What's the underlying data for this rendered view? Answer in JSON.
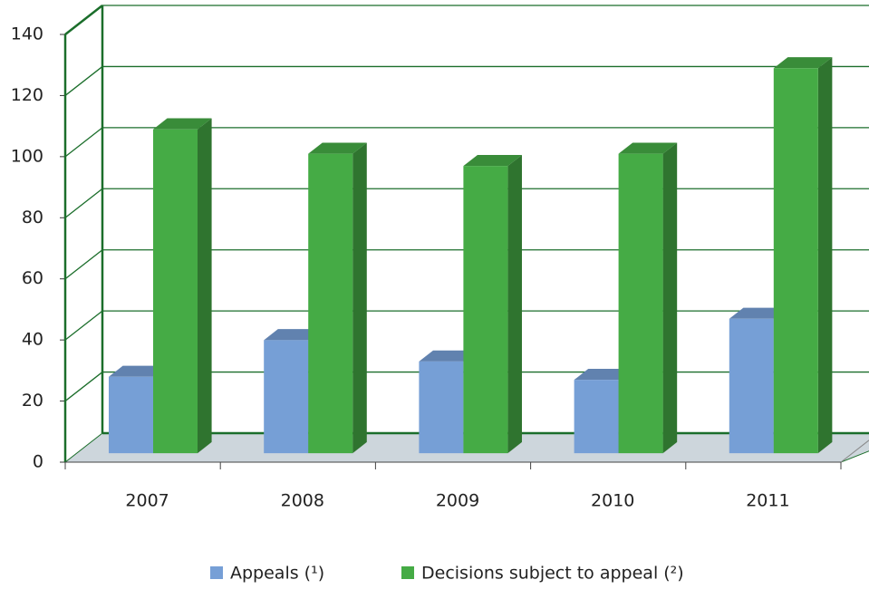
{
  "chart_data": {
    "type": "bar3d",
    "categories": [
      "2007",
      "2008",
      "2009",
      "2010",
      "2011"
    ],
    "series": [
      {
        "name": "Appeals (¹)",
        "color": "#769fd6",
        "values": [
          25,
          37,
          30,
          24,
          44
        ]
      },
      {
        "name": "Decisions subject to appeal (²)",
        "color": "#45ab45",
        "values": [
          106,
          98,
          94,
          98,
          126
        ]
      }
    ],
    "ylim": [
      0,
      140
    ],
    "yticks": [
      0,
      20,
      40,
      60,
      80,
      100,
      120,
      140
    ],
    "grid": true,
    "legend": "bottom"
  }
}
